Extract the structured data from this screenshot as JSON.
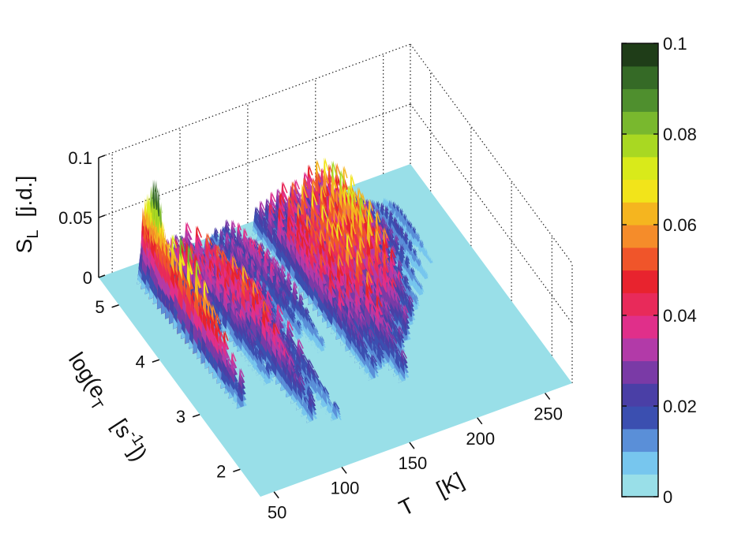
{
  "chart_data": {
    "type": "surface",
    "x_axis": {
      "name": "T",
      "unit": "[K]",
      "ticks": [
        "50",
        "100",
        "150",
        "200",
        "250"
      ],
      "range": [
        40,
        270
      ]
    },
    "y_axis": {
      "name": "log(e",
      "sub": "T",
      "unit_pre": "[s",
      "sup": "-1",
      "unit_post": "])",
      "ticks": [
        "2",
        "3",
        "4",
        "5"
      ],
      "range": [
        1.5,
        5.5
      ]
    },
    "z_axis": {
      "name": "S",
      "sub": "L",
      "unit": "[j.d.]",
      "ticks": [
        "0",
        "0.05",
        "0.1"
      ],
      "range": [
        0,
        0.1
      ]
    },
    "colorbar": {
      "ticks": [
        "0",
        "0.02",
        "0.04",
        "0.06",
        "0.08",
        "0.1"
      ],
      "range": [
        0,
        0.1
      ],
      "colors": [
        "#99dfe8",
        "#77c6ee",
        "#5a8fd8",
        "#3b4fb0",
        "#4a3fa6",
        "#7a3aa6",
        "#b23aa8",
        "#e02f8a",
        "#e82a5a",
        "#e8232e",
        "#f0552a",
        "#f58c2a",
        "#f5b51f",
        "#f2e41a",
        "#d9ea1a",
        "#a9d822",
        "#79b82e",
        "#4f8f2e",
        "#356a26",
        "#1f3d18"
      ]
    },
    "ridges": [
      {
        "t": 62,
        "e0": 5.2,
        "e1": 2.8,
        "h": 0.082
      },
      {
        "t": 66,
        "e0": 5.3,
        "e1": 4.6,
        "h": 0.095
      },
      {
        "t": 75,
        "e0": 5.0,
        "e1": 3.6,
        "h": 0.03
      },
      {
        "t": 80,
        "e0": 5.2,
        "e1": 3.9,
        "h": 0.052
      },
      {
        "t": 88,
        "e0": 5.3,
        "e1": 3.0,
        "h": 0.048
      },
      {
        "t": 95,
        "e0": 5.3,
        "e1": 2.2,
        "h": 0.062
      },
      {
        "t": 100,
        "e0": 5.2,
        "e1": 2.4,
        "h": 0.05
      },
      {
        "t": 104,
        "e0": 5.1,
        "e1": 2.6,
        "h": 0.045
      },
      {
        "t": 110,
        "e0": 5.2,
        "e1": 2.1,
        "h": 0.04
      },
      {
        "t": 118,
        "e0": 5.3,
        "e1": 3.6,
        "h": 0.036
      },
      {
        "t": 126,
        "e0": 5.3,
        "e1": 3.5,
        "h": 0.042
      },
      {
        "t": 134,
        "e0": 5.0,
        "e1": 3.2,
        "h": 0.035
      },
      {
        "t": 150,
        "e0": 5.3,
        "e1": 2.5,
        "h": 0.055
      },
      {
        "t": 158,
        "e0": 5.3,
        "e1": 2.6,
        "h": 0.062
      },
      {
        "t": 166,
        "e0": 5.3,
        "e1": 2.3,
        "h": 0.072
      },
      {
        "t": 176,
        "e0": 5.3,
        "e1": 2.7,
        "h": 0.068
      },
      {
        "t": 186,
        "e0": 5.3,
        "e1": 2.9,
        "h": 0.082
      },
      {
        "t": 196,
        "e0": 5.3,
        "e1": 3.1,
        "h": 0.07
      },
      {
        "t": 206,
        "e0": 5.2,
        "e1": 3.3,
        "h": 0.04
      },
      {
        "t": 216,
        "e0": 5.1,
        "e1": 3.5,
        "h": 0.03
      },
      {
        "t": 226,
        "e0": 5.0,
        "e1": 3.7,
        "h": 0.024
      },
      {
        "t": 236,
        "e0": 5.0,
        "e1": 3.9,
        "h": 0.018
      }
    ]
  }
}
